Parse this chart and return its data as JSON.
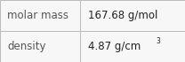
{
  "rows": [
    {
      "label": "molar mass",
      "value": "167.68 g/mol",
      "superscript": null
    },
    {
      "label": "density",
      "value": "4.87 g/cm",
      "superscript": "3"
    }
  ],
  "bg_color": "#f7f7f7",
  "cell_bg": "#f7f7f7",
  "border_color": "#bbbbbb",
  "label_color": "#555555",
  "value_color": "#222222",
  "font_size": 8.5,
  "col_split": 0.435,
  "fig_width": 2.08,
  "fig_height": 0.7
}
